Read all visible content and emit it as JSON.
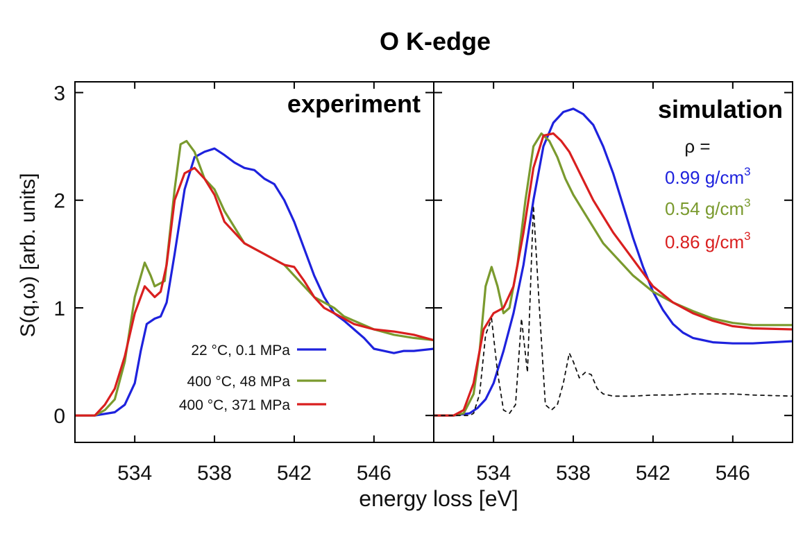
{
  "title": "O K-edge",
  "ylabel_main": "S(q,ω) [arb. units]",
  "xlabel": "energy loss [eV]",
  "colors": {
    "blue": "#1e22dd",
    "green": "#7a9a2e",
    "red": "#d91f1f",
    "dashed": "#111111",
    "axis": "#000000"
  },
  "chart_data": [
    {
      "type": "line",
      "panel": "experiment",
      "panel_label": "experiment",
      "xlim": [
        531,
        549
      ],
      "ylim": [
        -0.25,
        3.1
      ],
      "xticks": [
        534,
        538,
        542,
        546
      ],
      "yticks": [
        0,
        1,
        2,
        3
      ],
      "xlabel": "energy loss [eV]",
      "ylabel": "S(q,ω) [arb. units]",
      "legend_position": "bottom-center",
      "series": [
        {
          "name": "22 °C,  0.1 MPa",
          "color": "blue",
          "x": [
            531.0,
            532.0,
            533.0,
            533.5,
            534.0,
            534.3,
            534.6,
            535.0,
            535.3,
            535.6,
            536.0,
            536.5,
            537.0,
            537.5,
            538.0,
            538.5,
            539.0,
            539.5,
            540.0,
            540.5,
            541.0,
            541.5,
            542.0,
            542.5,
            543.0,
            543.5,
            544.0,
            544.5,
            545.0,
            545.5,
            546.0,
            546.5,
            547.0,
            547.5,
            548.0,
            549.0
          ],
          "y": [
            0.0,
            0.0,
            0.03,
            0.1,
            0.3,
            0.6,
            0.85,
            0.9,
            0.92,
            1.05,
            1.5,
            2.1,
            2.4,
            2.45,
            2.48,
            2.42,
            2.35,
            2.3,
            2.28,
            2.2,
            2.15,
            2.0,
            1.8,
            1.55,
            1.3,
            1.1,
            0.95,
            0.88,
            0.8,
            0.72,
            0.62,
            0.6,
            0.58,
            0.6,
            0.6,
            0.62
          ]
        },
        {
          "name": "400 °C,   48 MPa",
          "color": "green",
          "x": [
            531.0,
            532.0,
            532.5,
            533.0,
            533.5,
            534.0,
            534.5,
            534.8,
            535.0,
            535.5,
            536.0,
            536.3,
            536.6,
            537.0,
            537.5,
            538.0,
            538.5,
            539.0,
            539.5,
            540.0,
            540.5,
            541.0,
            541.5,
            542.0,
            542.5,
            543.0,
            543.5,
            544.0,
            544.5,
            545.0,
            546.0,
            547.0,
            548.0,
            549.0
          ],
          "y": [
            0.0,
            0.0,
            0.05,
            0.15,
            0.5,
            1.1,
            1.42,
            1.3,
            1.2,
            1.25,
            2.1,
            2.52,
            2.55,
            2.45,
            2.2,
            2.1,
            1.9,
            1.75,
            1.6,
            1.55,
            1.5,
            1.45,
            1.4,
            1.3,
            1.2,
            1.1,
            1.05,
            1.0,
            0.92,
            0.88,
            0.8,
            0.75,
            0.72,
            0.7
          ]
        },
        {
          "name": "400 °C, 371 MPa",
          "color": "red",
          "x": [
            531.0,
            532.0,
            532.5,
            533.0,
            533.5,
            534.0,
            534.5,
            535.0,
            535.3,
            535.6,
            536.0,
            536.5,
            537.0,
            537.5,
            538.0,
            538.5,
            539.0,
            539.5,
            540.0,
            540.5,
            541.0,
            541.5,
            542.0,
            542.5,
            543.0,
            543.5,
            544.0,
            544.5,
            545.0,
            546.0,
            547.0,
            548.0,
            549.0
          ],
          "y": [
            0.0,
            0.0,
            0.1,
            0.25,
            0.55,
            0.95,
            1.2,
            1.1,
            1.15,
            1.4,
            2.0,
            2.25,
            2.3,
            2.2,
            2.05,
            1.8,
            1.7,
            1.6,
            1.55,
            1.5,
            1.45,
            1.4,
            1.38,
            1.25,
            1.1,
            1.0,
            0.95,
            0.9,
            0.85,
            0.8,
            0.78,
            0.75,
            0.7
          ]
        }
      ]
    },
    {
      "type": "line",
      "panel": "simulation",
      "panel_label": "simulation",
      "xlim": [
        531,
        549
      ],
      "ylim": [
        -0.25,
        3.1
      ],
      "xticks": [
        534,
        538,
        542,
        546
      ],
      "rho_label": "ρ =",
      "legend_position": "top-right",
      "series": [
        {
          "name": "0.99 g/cm",
          "sup": "3",
          "color": "blue",
          "x": [
            531.0,
            532.0,
            532.8,
            533.2,
            533.6,
            534.0,
            534.5,
            535.0,
            535.5,
            536.0,
            536.5,
            537.0,
            537.5,
            538.0,
            538.5,
            539.0,
            539.5,
            540.0,
            540.5,
            541.0,
            541.5,
            542.0,
            542.5,
            543.0,
            543.5,
            544.0,
            544.5,
            545.0,
            546.0,
            547.0,
            548.0,
            549.0
          ],
          "y": [
            0.0,
            0.0,
            0.02,
            0.07,
            0.15,
            0.3,
            0.6,
            0.95,
            1.4,
            2.0,
            2.5,
            2.72,
            2.82,
            2.85,
            2.8,
            2.7,
            2.5,
            2.25,
            1.95,
            1.65,
            1.38,
            1.15,
            0.98,
            0.85,
            0.77,
            0.72,
            0.7,
            0.68,
            0.67,
            0.67,
            0.68,
            0.69
          ]
        },
        {
          "name": "0.54 g/cm",
          "sup": "3",
          "color": "green",
          "x": [
            531.0,
            532.0,
            532.5,
            533.0,
            533.3,
            533.6,
            533.9,
            534.2,
            534.5,
            534.8,
            535.2,
            535.6,
            536.0,
            536.4,
            536.8,
            537.2,
            537.6,
            538.0,
            538.5,
            539.0,
            539.5,
            540.0,
            541.0,
            542.0,
            543.0,
            544.0,
            545.0,
            546.0,
            547.0,
            549.0
          ],
          "y": [
            0.0,
            0.0,
            0.02,
            0.2,
            0.6,
            1.2,
            1.38,
            1.2,
            0.95,
            1.0,
            1.4,
            2.0,
            2.5,
            2.62,
            2.55,
            2.4,
            2.2,
            2.05,
            1.9,
            1.75,
            1.6,
            1.5,
            1.3,
            1.15,
            1.05,
            0.97,
            0.9,
            0.86,
            0.84,
            0.84
          ]
        },
        {
          "name": "0.86 g/cm",
          "sup": "3",
          "color": "red",
          "x": [
            531.0,
            532.0,
            532.5,
            533.0,
            533.5,
            534.0,
            534.5,
            535.0,
            535.5,
            536.0,
            536.5,
            537.0,
            537.4,
            537.8,
            538.2,
            538.6,
            539.0,
            539.5,
            540.0,
            541.0,
            542.0,
            543.0,
            544.0,
            545.0,
            546.0,
            547.0,
            549.0
          ],
          "y": [
            0.0,
            0.0,
            0.05,
            0.3,
            0.8,
            0.95,
            1.0,
            1.2,
            1.7,
            2.3,
            2.6,
            2.62,
            2.55,
            2.45,
            2.3,
            2.15,
            2.0,
            1.85,
            1.7,
            1.45,
            1.2,
            1.05,
            0.95,
            0.88,
            0.83,
            0.81,
            0.8
          ]
        },
        {
          "name": "",
          "color": "dashed",
          "dashed": true,
          "x": [
            531.0,
            532.0,
            532.8,
            533.0,
            533.3,
            533.6,
            533.9,
            534.2,
            534.5,
            534.8,
            535.1,
            535.4,
            535.7,
            536.0,
            536.3,
            536.6,
            536.9,
            537.2,
            537.5,
            537.8,
            538.0,
            538.3,
            538.6,
            538.9,
            539.2,
            539.5,
            540.0,
            541.0,
            542.0,
            543.0,
            544.0,
            545.0,
            546.0,
            547.0,
            549.0
          ],
          "y": [
            0.0,
            0.0,
            0.0,
            0.02,
            0.2,
            0.75,
            0.9,
            0.4,
            0.05,
            0.02,
            0.1,
            0.9,
            0.4,
            1.95,
            1.0,
            0.1,
            0.05,
            0.1,
            0.3,
            0.58,
            0.5,
            0.35,
            0.4,
            0.38,
            0.25,
            0.2,
            0.18,
            0.18,
            0.19,
            0.19,
            0.2,
            0.2,
            0.2,
            0.19,
            0.18
          ]
        }
      ]
    }
  ]
}
